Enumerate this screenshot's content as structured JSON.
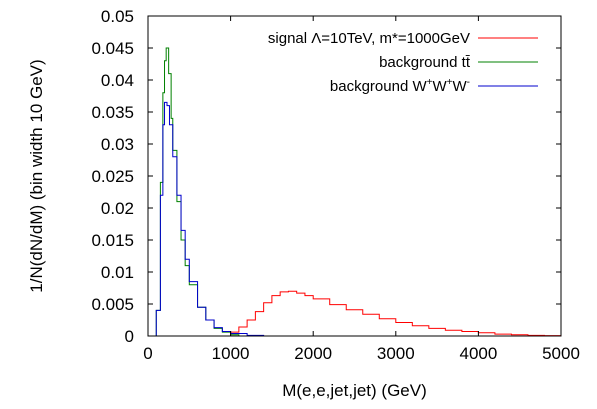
{
  "chart_data": {
    "type": "line",
    "title": "",
    "xlabel": "M(e,e,jet,jet) (GeV)",
    "ylabel": "1/N(dN/dM) (bin width 10 GeV)",
    "xlim": [
      0,
      5000
    ],
    "ylim": [
      0,
      0.05
    ],
    "x_ticks": [
      0,
      1000,
      2000,
      3000,
      4000,
      5000
    ],
    "x_tick_labels": [
      "0",
      "1000",
      "2000",
      "3000",
      "4000",
      "5000"
    ],
    "y_ticks": [
      0,
      0.005,
      0.01,
      0.015,
      0.02,
      0.025,
      0.03,
      0.035,
      0.04,
      0.045,
      0.05
    ],
    "y_tick_labels": [
      "0",
      "0.005",
      "0.01",
      "0.015",
      "0.02",
      "0.025",
      "0.03",
      "0.035",
      "0.04",
      "0.045",
      "0.05"
    ],
    "grid": false,
    "legend_position": "top-right",
    "series": [
      {
        "name": "signal Λ=10TeV, m*=1000GeV",
        "legend_main": "signal Λ=10TeV, m*=1000GeV",
        "legend_sup": "",
        "legend_sup_final": "",
        "color": "#ff0000",
        "x": [
          900,
          1000,
          1100,
          1200,
          1300,
          1400,
          1500,
          1600,
          1700,
          1800,
          1900,
          2000,
          2200,
          2400,
          2600,
          2800,
          3000,
          3200,
          3400,
          3600,
          3800,
          4000,
          4200,
          4400,
          4600,
          4800,
          5000
        ],
        "y": [
          0.0,
          0.0006,
          0.0014,
          0.0025,
          0.0038,
          0.0052,
          0.0063,
          0.0069,
          0.007,
          0.0067,
          0.0063,
          0.0058,
          0.0049,
          0.0041,
          0.0034,
          0.0027,
          0.0021,
          0.0016,
          0.0012,
          0.0009,
          0.0007,
          0.0005,
          0.0003,
          0.0002,
          0.0001,
          5e-05,
          0.0
        ]
      },
      {
        "name": "background tt̄",
        "legend_main": "background tt̄",
        "legend_sup": "",
        "legend_sup_final": "",
        "color": "#008000",
        "x": [
          50,
          100,
          150,
          180,
          200,
          220,
          250,
          280,
          300,
          350,
          400,
          450,
          500,
          600,
          700,
          800,
          900,
          1000,
          1100
        ],
        "y": [
          0.0,
          0.004,
          0.024,
          0.038,
          0.043,
          0.045,
          0.041,
          0.034,
          0.029,
          0.021,
          0.015,
          0.011,
          0.008,
          0.0045,
          0.0025,
          0.0012,
          0.0006,
          0.0002,
          0.0
        ]
      },
      {
        "name": "background W⁺W⁺W⁻",
        "legend_main": "background W",
        "legend_sup": "+",
        "legend_sup_final": "-",
        "color": "#0000cc",
        "x": [
          50,
          100,
          150,
          180,
          200,
          230,
          260,
          300,
          350,
          400,
          450,
          500,
          600,
          700,
          800,
          900,
          1000,
          1200,
          1400
        ],
        "y": [
          0.0,
          0.004,
          0.022,
          0.033,
          0.0365,
          0.036,
          0.033,
          0.028,
          0.022,
          0.0165,
          0.012,
          0.0085,
          0.0045,
          0.0025,
          0.0013,
          0.0007,
          0.0004,
          0.0001,
          0.0
        ]
      }
    ]
  }
}
